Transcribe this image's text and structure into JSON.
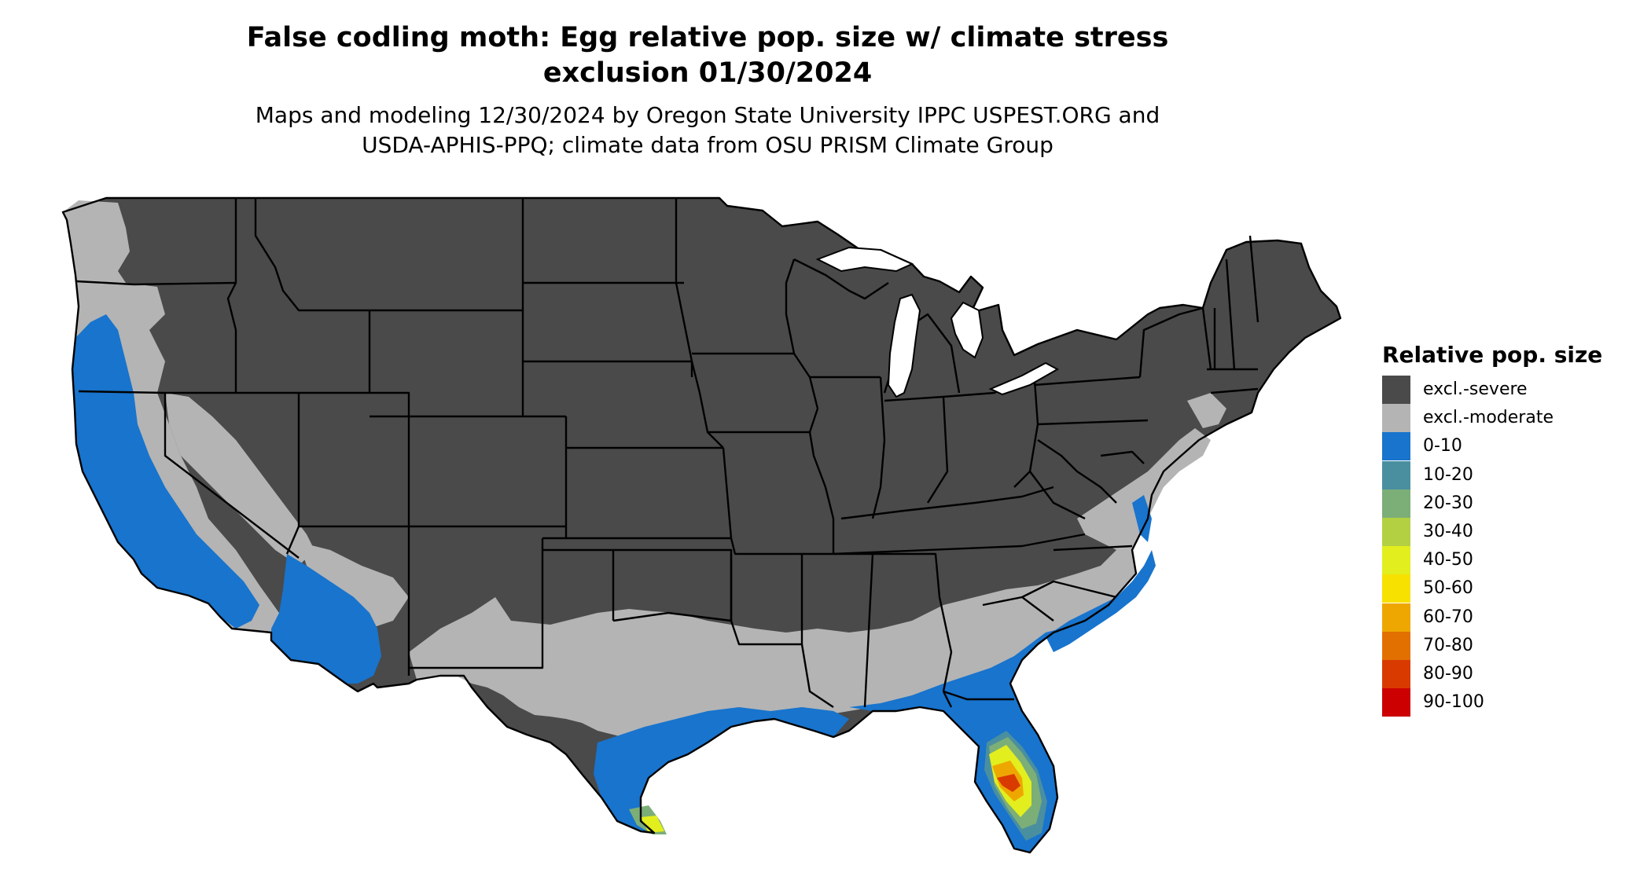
{
  "title": {
    "line1": "False codling moth: Egg relative pop. size w/ climate stress",
    "line2": "exclusion 01/30/2024"
  },
  "subtitle": {
    "line1": "Maps and modeling 12/30/2024 by Oregon State University IPPC USPEST.ORG and",
    "line2": "USDA-APHIS-PPQ; climate data from OSU PRISM Climate Group"
  },
  "legend": {
    "title": "Relative pop. size",
    "items": [
      {
        "label": "excl.-severe",
        "color": "#4a4a4a"
      },
      {
        "label": "excl.-moderate",
        "color": "#b4b4b4"
      },
      {
        "label": "0-10",
        "color": "#1874cd"
      },
      {
        "label": "10-20",
        "color": "#4a8fa0"
      },
      {
        "label": "20-30",
        "color": "#7cae78"
      },
      {
        "label": "30-40",
        "color": "#b2d042"
      },
      {
        "label": "40-50",
        "color": "#e2ee1e"
      },
      {
        "label": "50-60",
        "color": "#f7e100"
      },
      {
        "label": "60-70",
        "color": "#eea700"
      },
      {
        "label": "70-80",
        "color": "#e27000"
      },
      {
        "label": "80-90",
        "color": "#d93a00"
      },
      {
        "label": "90-100",
        "color": "#cc0000"
      }
    ]
  },
  "map": {
    "region": "Contiguous United States",
    "colors": {
      "severe": "#4a4a4a",
      "moderate": "#b4b4b4",
      "low": "#1874cd",
      "border": "#000000",
      "water": "#ffffff"
    }
  }
}
